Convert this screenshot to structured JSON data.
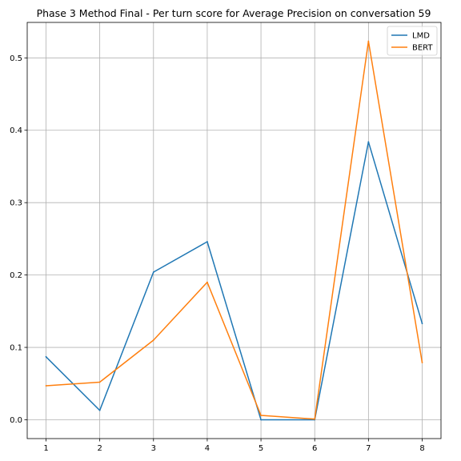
{
  "chart_data": {
    "type": "line",
    "title": "Phase 3 Method Final - Per turn score for Average Precision on conversation 59",
    "xlabel": "",
    "ylabel": "",
    "x": [
      1,
      2,
      3,
      4,
      5,
      6,
      7,
      8
    ],
    "xlim": [
      0.65,
      8.35
    ],
    "ylim": [
      -0.026,
      0.549
    ],
    "yticks": [
      0.0,
      0.1,
      0.2,
      0.3,
      0.4,
      0.5
    ],
    "ytick_labels": [
      "0.0",
      "0.1",
      "0.2",
      "0.3",
      "0.4",
      "0.5"
    ],
    "xtick_labels": [
      "1",
      "2",
      "3",
      "4",
      "5",
      "6",
      "7",
      "8"
    ],
    "grid": true,
    "legend_position": "top-right",
    "series": [
      {
        "name": "LMD",
        "color": "#1f77b4",
        "values": [
          0.087,
          0.013,
          0.204,
          0.246,
          0.0,
          0.0,
          0.384,
          0.133
        ]
      },
      {
        "name": "BERT",
        "color": "#ff7f0e",
        "values": [
          0.047,
          0.052,
          0.11,
          0.19,
          0.006,
          0.001,
          0.523,
          0.079
        ]
      }
    ]
  }
}
